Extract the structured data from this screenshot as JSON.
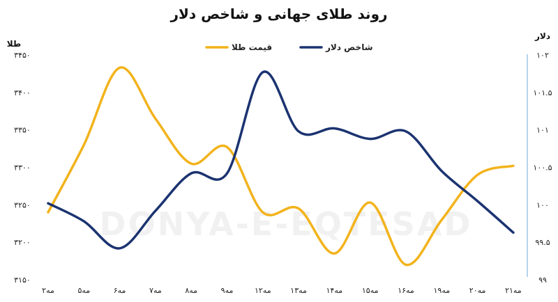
{
  "chart_data": {
    "type": "line",
    "title": "روند طلای جهانی و شاخص دلار",
    "y_left_label": "طلا",
    "y_right_label": "دلار",
    "categories": [
      "۲مه",
      "۵مه",
      "۶مه",
      "۷مه",
      "۸مه",
      "۹مه",
      "۱۲مه",
      "۱۳مه",
      "۱۴مه",
      "۱۵مه",
      "۱۶مه",
      "۱۹مه",
      "۲۰مه",
      "۲۱مه"
    ],
    "y_left_ticks": [
      "۳۴۵۰",
      "۳۴۰۰",
      "۳۳۵۰",
      "۳۳۰۰",
      "۳۲۵۰",
      "۳۲۰۰",
      "۳۱۵۰"
    ],
    "y_right_ticks": [
      "۱۰۲",
      "۱۰۱.۵",
      "۱۰۱",
      "۱۰۰.۵",
      "۱۰۰",
      "۹۹.۵",
      "۹۹"
    ],
    "y_left_range": [
      3150,
      3450
    ],
    "y_right_range": [
      99,
      102
    ],
    "series": [
      {
        "name": "قیمت طلا",
        "axis": "left",
        "color": "#f2b31c",
        "values": [
          3240,
          3330,
          3433,
          3365,
          3305,
          3327,
          3240,
          3245,
          3185,
          3253,
          3170,
          3230,
          3290,
          3302
        ]
      },
      {
        "name": "شاخص دلار",
        "axis": "right",
        "color": "#1b3370",
        "values": [
          100.02,
          99.78,
          99.42,
          99.92,
          100.42,
          100.42,
          101.77,
          100.98,
          101.02,
          100.88,
          100.98,
          100.45,
          100.05,
          99.63
        ]
      }
    ],
    "watermark": "DONYA-E-EQTESAD",
    "grid": false,
    "legend_position": "top"
  }
}
